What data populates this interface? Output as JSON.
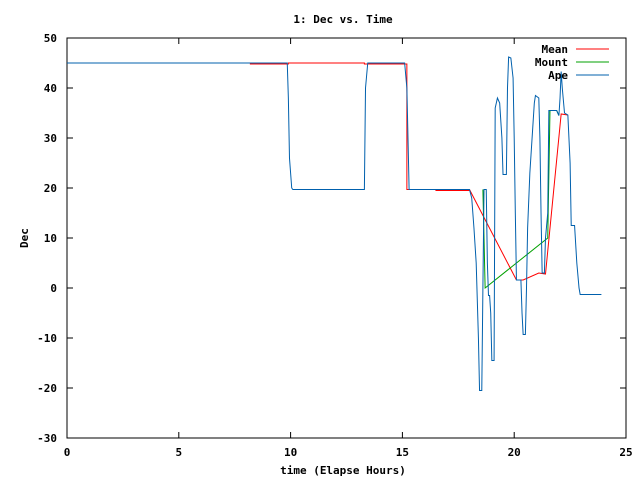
{
  "chart_data": {
    "type": "line",
    "title": "1: Dec vs. Time",
    "xlabel": "time (Elapse Hours)",
    "ylabel": "Dec",
    "xlim": [
      0,
      25
    ],
    "ylim": [
      -30,
      50
    ],
    "x_ticks": [
      0,
      5,
      10,
      15,
      20,
      25
    ],
    "y_ticks": [
      -30,
      -20,
      -10,
      0,
      10,
      20,
      30,
      40,
      50
    ],
    "grid": false,
    "legend_position": "top-right",
    "series": [
      {
        "name": "Mean",
        "color": "#ff0000",
        "points": [
          [
            0,
            45
          ],
          [
            8.2,
            45
          ],
          [
            8.2,
            44.8
          ],
          [
            9.9,
            44.8
          ],
          [
            9.9,
            45
          ],
          [
            13.3,
            45
          ],
          [
            13.3,
            44.8
          ],
          [
            15.2,
            44.8
          ],
          [
            15.2,
            19.7
          ],
          [
            16.5,
            19.7
          ],
          [
            16.5,
            19.5
          ],
          [
            18.0,
            19.5
          ],
          [
            18.0,
            19.7
          ],
          [
            20.1,
            1.6
          ],
          [
            20.4,
            1.6
          ],
          [
            21.1,
            3.0
          ],
          [
            21.4,
            2.8
          ],
          [
            22.1,
            34.8
          ],
          [
            22.4,
            34.6
          ]
        ]
      },
      {
        "name": "Mount",
        "color": "#00a000",
        "points": [
          [
            18.6,
            19.7
          ],
          [
            18.7,
            0
          ],
          [
            21.5,
            10
          ],
          [
            21.6,
            35.5
          ],
          [
            21.9,
            35.5
          ],
          [
            22.0,
            34.5
          ]
        ]
      },
      {
        "name": "Ape",
        "color": "#0060ad",
        "points": [
          [
            0,
            45
          ],
          [
            9.85,
            45
          ],
          [
            9.9,
            38
          ],
          [
            9.95,
            26
          ],
          [
            10.05,
            20
          ],
          [
            10.1,
            19.7
          ],
          [
            13.3,
            19.7
          ],
          [
            13.35,
            40
          ],
          [
            13.45,
            45
          ],
          [
            15.1,
            45
          ],
          [
            15.2,
            40
          ],
          [
            15.25,
            30
          ],
          [
            15.3,
            19.7
          ],
          [
            18.0,
            19.7
          ],
          [
            18.1,
            18
          ],
          [
            18.2,
            12
          ],
          [
            18.3,
            5
          ],
          [
            18.4,
            -10
          ],
          [
            18.45,
            -20.5
          ],
          [
            18.55,
            -20.5
          ],
          [
            18.6,
            0
          ],
          [
            18.65,
            19.7
          ],
          [
            18.75,
            19.7
          ],
          [
            18.8,
            5
          ],
          [
            18.85,
            -1.5
          ],
          [
            18.9,
            -1.5
          ],
          [
            18.95,
            -5
          ],
          [
            19.0,
            -14.5
          ],
          [
            19.1,
            -14.5
          ],
          [
            19.15,
            36
          ],
          [
            19.25,
            38
          ],
          [
            19.35,
            37
          ],
          [
            19.45,
            30
          ],
          [
            19.5,
            22.7
          ],
          [
            19.65,
            22.7
          ],
          [
            19.7,
            40
          ],
          [
            19.75,
            46.2
          ],
          [
            19.85,
            46
          ],
          [
            19.95,
            42
          ],
          [
            20.0,
            30
          ],
          [
            20.05,
            15
          ],
          [
            20.1,
            1.6
          ],
          [
            20.3,
            1.6
          ],
          [
            20.35,
            -5
          ],
          [
            20.4,
            -9.3
          ],
          [
            20.5,
            -9.3
          ],
          [
            20.55,
            0
          ],
          [
            20.6,
            12
          ],
          [
            20.7,
            23
          ],
          [
            20.8,
            30
          ],
          [
            20.9,
            37
          ],
          [
            20.95,
            38.5
          ],
          [
            21.1,
            38
          ],
          [
            21.15,
            30
          ],
          [
            21.2,
            15
          ],
          [
            21.25,
            3
          ],
          [
            21.35,
            3
          ],
          [
            21.4,
            10
          ],
          [
            21.5,
            15
          ],
          [
            21.55,
            35.5
          ],
          [
            21.9,
            35.5
          ],
          [
            22.0,
            34.5
          ],
          [
            22.05,
            38
          ],
          [
            22.1,
            43.3
          ],
          [
            22.15,
            40
          ],
          [
            22.25,
            35
          ],
          [
            22.4,
            34.6
          ],
          [
            22.5,
            25
          ],
          [
            22.55,
            12.5
          ],
          [
            22.7,
            12.5
          ],
          [
            22.8,
            5
          ],
          [
            22.9,
            0
          ],
          [
            22.95,
            -1.3
          ],
          [
            23.9,
            -1.3
          ]
        ]
      }
    ]
  }
}
